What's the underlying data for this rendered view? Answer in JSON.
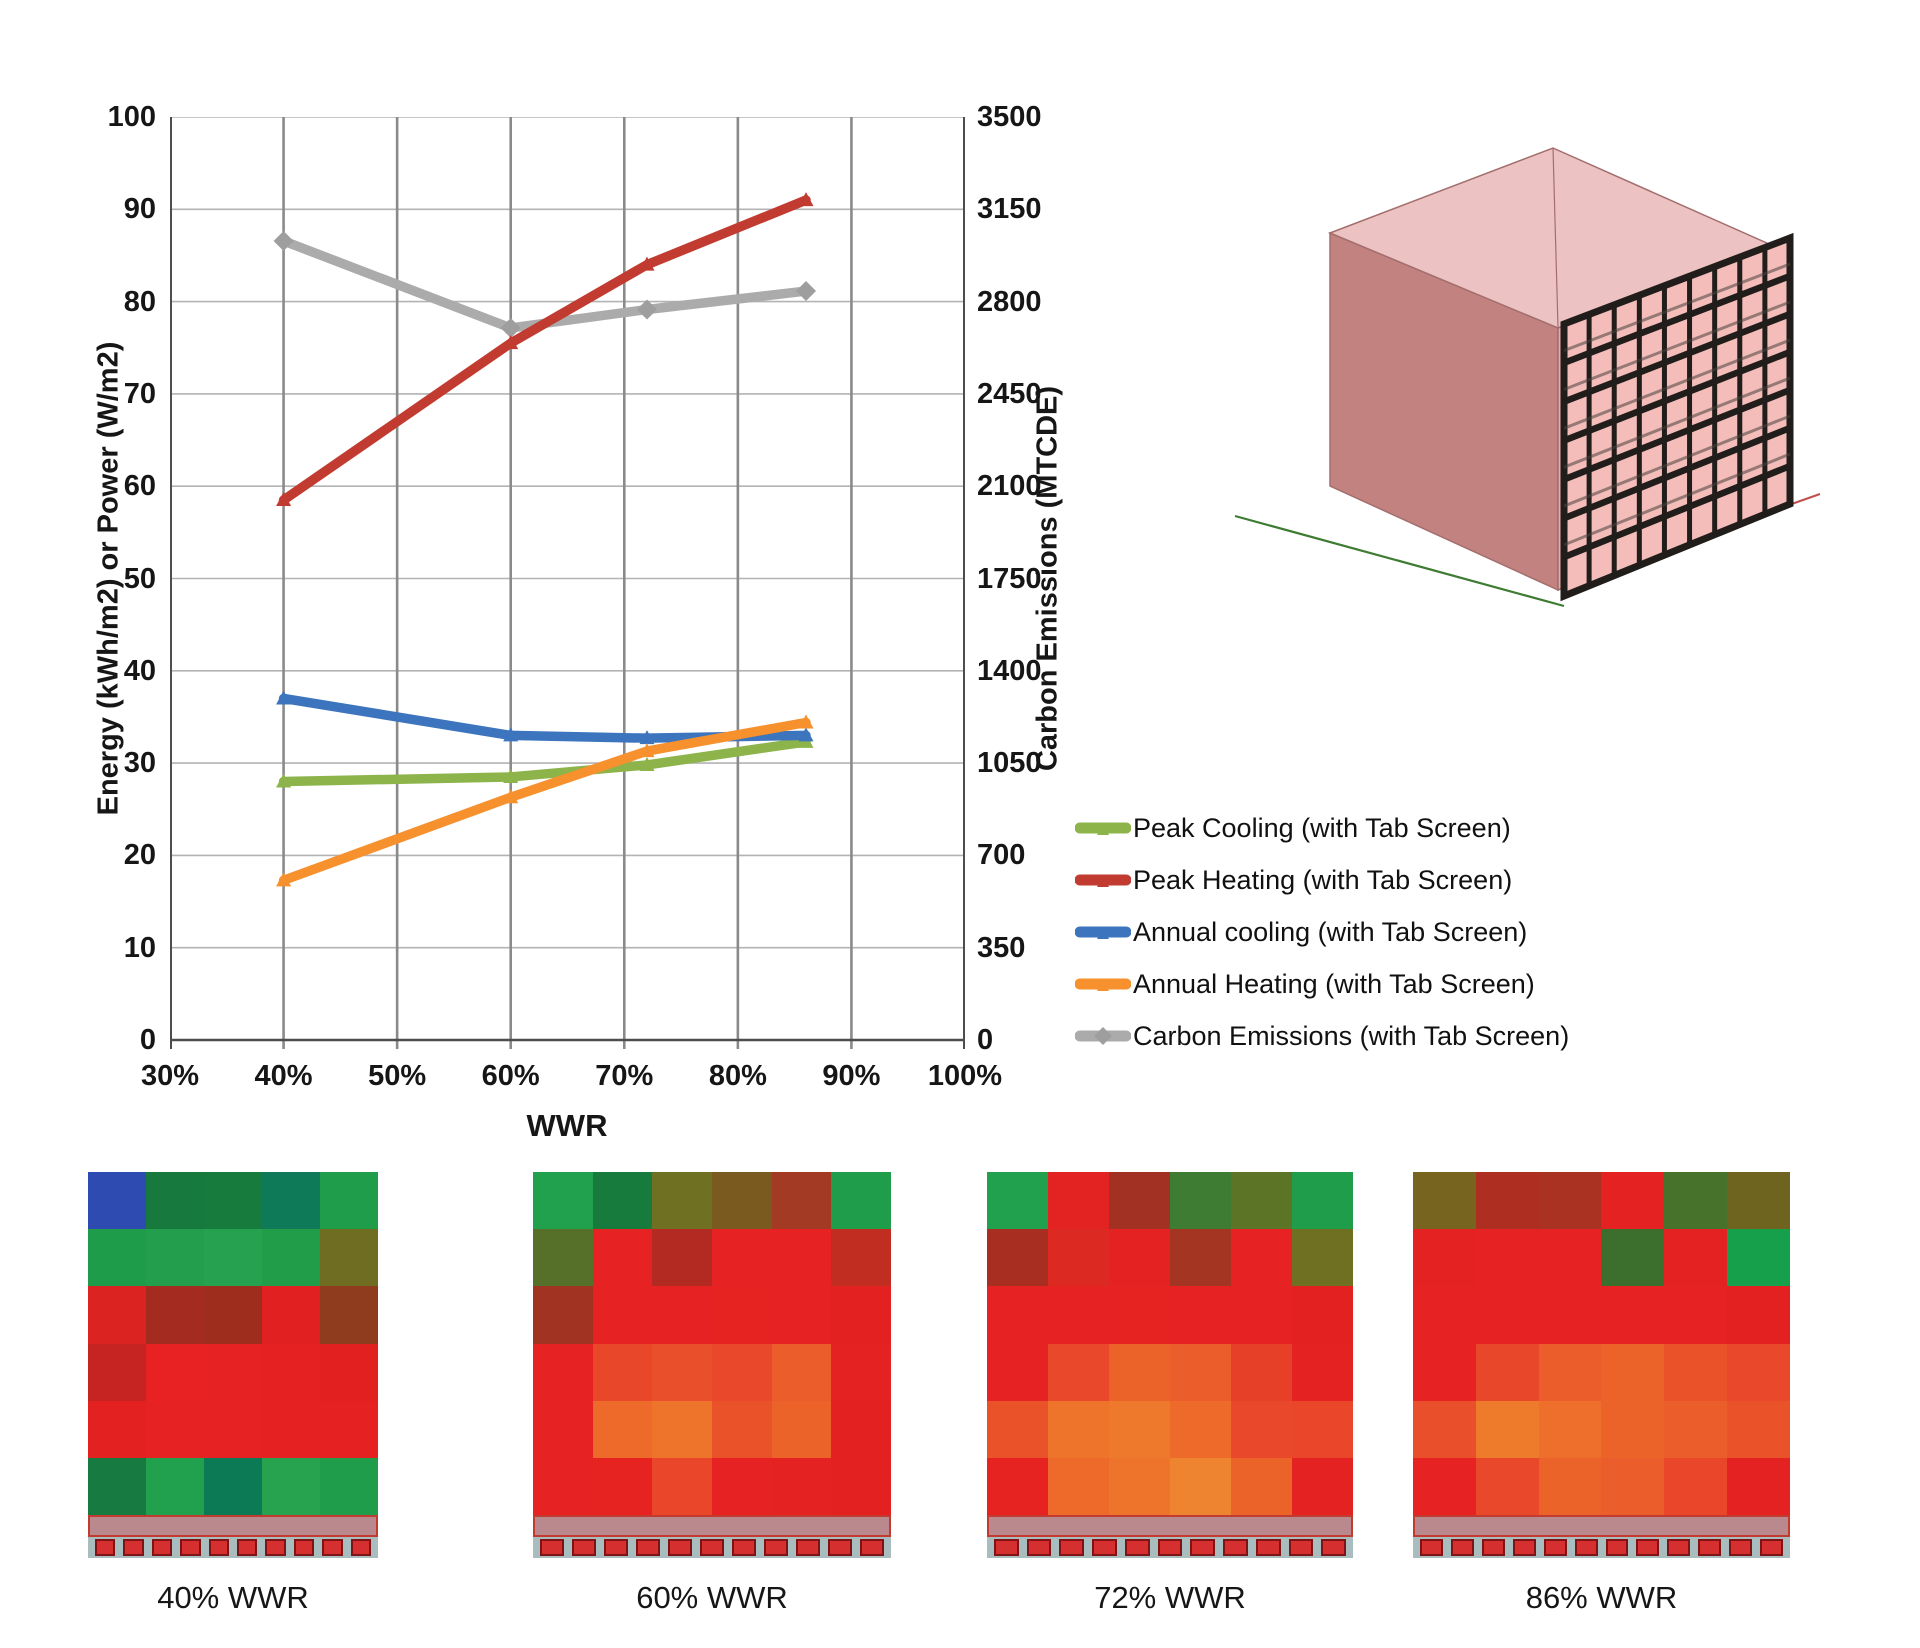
{
  "chart_data": {
    "type": "line",
    "title": "",
    "x_label": "WWR",
    "x_min": 30,
    "x_max": 100,
    "x_tick_labels": [
      "30%",
      "40%",
      "50%",
      "60%",
      "70%",
      "80%",
      "90%",
      "100%"
    ],
    "y_left_label": "Energy (kWh/m2) or Power (W/m2)",
    "y_left_min": 0,
    "y_left_max": 100,
    "y_left_ticks": [
      100,
      90,
      80,
      70,
      60,
      50,
      40,
      30,
      20,
      10,
      0
    ],
    "y_right_label": "Carbon Emissions (MTCDE)",
    "y_right_min": 0,
    "y_right_max": 3500,
    "y_right_ticks": [
      3500,
      3150,
      2800,
      2450,
      2100,
      1750,
      1400,
      1050,
      700,
      350,
      0
    ],
    "x": [
      40,
      60,
      72,
      86
    ],
    "series": [
      {
        "name": "Carbon Emissions (with Tab Screen)",
        "axis": "right",
        "color": "#ABABAB",
        "marker": "diamond",
        "values": [
          3030,
          2700,
          2770,
          2840
        ]
      },
      {
        "name": "Peak Cooling (with Tab Screen)",
        "axis": "left",
        "color": "#8CB44A",
        "marker": "triangle",
        "values": [
          28,
          28.5,
          29.8,
          32.3
        ]
      },
      {
        "name": "Peak Heating (with Tab Screen)",
        "axis": "left",
        "color": "#C23B31",
        "marker": "triangle",
        "values": [
          58.5,
          75.5,
          84,
          91
        ]
      },
      {
        "name": "Annual cooling (with Tab Screen)",
        "axis": "left",
        "color": "#3C75BD",
        "marker": "triangle",
        "values": [
          37,
          33,
          32.7,
          33
        ]
      },
      {
        "name": "Annual Heating (with Tab Screen)",
        "axis": "left",
        "color": "#F6912E",
        "marker": "triangle",
        "values": [
          17.3,
          26.3,
          31.3,
          34.4
        ]
      }
    ],
    "grid": "on",
    "gridline_color_vertical": "#8A8A8A",
    "gridline_color_horizontal": "#B3B3B3",
    "axis_color": "#4D4D4D",
    "legend_position": "right"
  },
  "legend": {
    "items": [
      {
        "label": "Peak Cooling (with Tab Screen)",
        "color": "#8CB44A",
        "marker": "line"
      },
      {
        "label": "Peak Heating (with Tab Screen)",
        "color": "#C23B31",
        "marker": "line"
      },
      {
        "label": "Annual cooling (with Tab Screen)",
        "color": "#3C75BD",
        "marker": "line"
      },
      {
        "label": "Annual Heating (with Tab Screen)",
        "color": "#F6912E",
        "marker": "line"
      },
      {
        "label": "Carbon Emissions (with Tab Screen)",
        "color": "#ABABAB",
        "marker": "diamond"
      }
    ]
  },
  "building_model": {
    "name": "building-box-with-tab-screen",
    "face_colors": {
      "left": "#C28280",
      "top": "#ECC3C2",
      "right": "#E8ABA9",
      "screen_backdrop": "#F4BDBA",
      "screen_frame": "#201D1B"
    },
    "screen_grid": {
      "columns": 9,
      "rows": 7
    },
    "ground_line_colors": {
      "left": "#3E7C33",
      "right": "#C0504D"
    }
  },
  "heatmaps": {
    "strip_style": {
      "band_color": "#B9898D",
      "band_border": "#C23B31",
      "gap_color": "#A9BCBE",
      "block_color": "#D62F2F",
      "block_border": "#7E1416"
    },
    "figures": [
      {
        "label": "40% WWR",
        "blocks": 10,
        "grid": [
          [
            "#2E4BB1",
            "#17793D",
            "#187B3E",
            "#0E7A58",
            "#1F9D4B"
          ],
          [
            "#1F9C4A",
            "#229E4C",
            "#26A14F",
            "#219C49",
            "#6F6D22"
          ],
          [
            "#DB2421",
            "#A32B20",
            "#9F2D1E",
            "#E12121",
            "#8F3C1E"
          ],
          [
            "#C62423",
            "#E82222",
            "#E72222",
            "#E52121",
            "#E22020"
          ],
          [
            "#E42121",
            "#E62222",
            "#E72222",
            "#E62121",
            "#E52121"
          ],
          [
            "#177A40",
            "#21A04E",
            "#0C7A55",
            "#27A350",
            "#1F9D4A"
          ]
        ]
      },
      {
        "label": "60% WWR",
        "blocks": 11,
        "grid": [
          [
            "#21A04E",
            "#187B3E",
            "#6F7021",
            "#7A5A1E",
            "#A33A23",
            "#1F9D4B"
          ],
          [
            "#56702A",
            "#E72222",
            "#B22A22",
            "#E62222",
            "#E62222",
            "#C22D22"
          ],
          [
            "#A13323",
            "#E62222",
            "#E62222",
            "#E72322",
            "#E62222",
            "#E32121"
          ],
          [
            "#E62222",
            "#E9472A",
            "#EA4F2B",
            "#E9492A",
            "#EB5E2B",
            "#E52222"
          ],
          [
            "#E72222",
            "#ED6A2A",
            "#EE742B",
            "#EA522A",
            "#EC632A",
            "#E32121"
          ],
          [
            "#E62222",
            "#E72322",
            "#E9462A",
            "#E62222",
            "#E52222",
            "#E42121"
          ]
        ]
      },
      {
        "label": "72% WWR",
        "blocks": 11,
        "grid": [
          [
            "#21A04E",
            "#E32222",
            "#A33123",
            "#3E7C33",
            "#5C7426",
            "#1F9D4B"
          ],
          [
            "#A82E22",
            "#DC2A22",
            "#E52222",
            "#A53523",
            "#E62222",
            "#6F7021"
          ],
          [
            "#E62222",
            "#E72222",
            "#E72322",
            "#E62222",
            "#E62222",
            "#E32121"
          ],
          [
            "#E62222",
            "#E9492A",
            "#EC632A",
            "#EB5E2B",
            "#E74028",
            "#E52222"
          ],
          [
            "#EA522A",
            "#EE742B",
            "#EE782C",
            "#ED6A2A",
            "#E9492A",
            "#E9462A"
          ],
          [
            "#E72322",
            "#ED6A2A",
            "#EE742B",
            "#EF8430",
            "#EC632A",
            "#E52222"
          ]
        ]
      },
      {
        "label": "86% WWR",
        "blocks": 12,
        "grid": [
          [
            "#77641F",
            "#AE2F22",
            "#A93222",
            "#E42222",
            "#46722B",
            "#6F6320"
          ],
          [
            "#E52222",
            "#E62222",
            "#E62222",
            "#3C6E2D",
            "#E52222",
            "#17A04C"
          ],
          [
            "#E62222",
            "#E72222",
            "#E72222",
            "#E62222",
            "#E62222",
            "#E42121"
          ],
          [
            "#E62222",
            "#E9472A",
            "#EB5E2B",
            "#EC632A",
            "#EA522A",
            "#E9492A"
          ],
          [
            "#EA4F2B",
            "#EE7A2C",
            "#ED6F2B",
            "#EC632A",
            "#EB5E2B",
            "#EA522A"
          ],
          [
            "#E62222",
            "#E9492A",
            "#EC632A",
            "#EB5E2B",
            "#E9462A",
            "#E52222"
          ]
        ]
      }
    ]
  }
}
